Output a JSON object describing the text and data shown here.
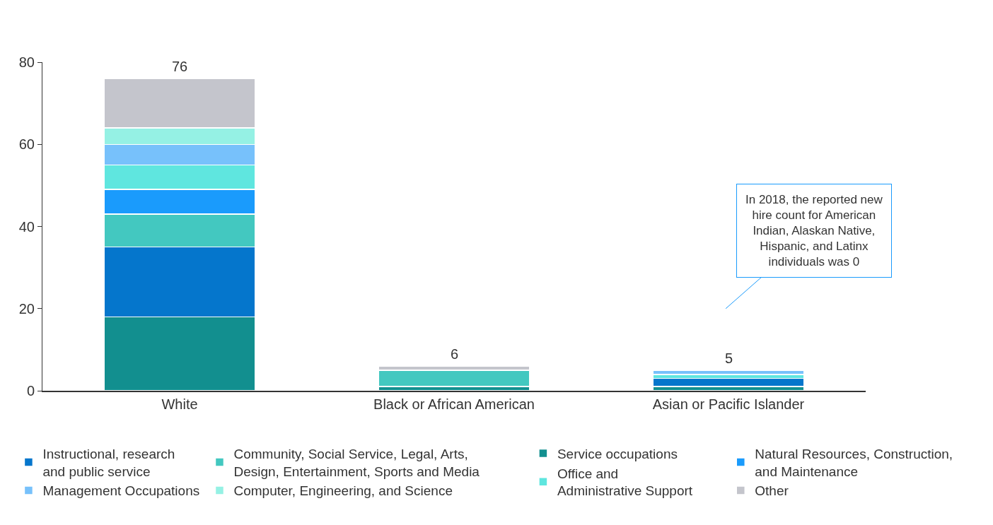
{
  "chart_data": {
    "type": "bar",
    "stacked": true,
    "categories": [
      "White",
      "Black or African American",
      "Asian or Pacific Islander"
    ],
    "series": [
      {
        "name": "Service occupations",
        "color": "#128f8f",
        "values": [
          18,
          1,
          1
        ]
      },
      {
        "name": "Instructional, research and public service",
        "color": "#0576cc",
        "values": [
          17,
          0,
          2
        ]
      },
      {
        "name": "Community, Social Service, Legal, Arts, Design, Entertainment, Sports and Media",
        "color": "#43c8c0",
        "values": [
          8,
          4,
          0
        ]
      },
      {
        "name": "Natural Resources, Construction, and Maintenance",
        "color": "#1a9bfc",
        "values": [
          6,
          0,
          0
        ]
      },
      {
        "name": "Office and Administrative Support",
        "color": "#5fe6df",
        "values": [
          6,
          0,
          1
        ]
      },
      {
        "name": "Management Occupations",
        "color": "#77c1fb",
        "values": [
          5,
          0,
          1
        ]
      },
      {
        "name": "Computer, Engineering, and Science",
        "color": "#95f1e4",
        "values": [
          4,
          0,
          0
        ]
      },
      {
        "name": "Other",
        "color": "#c4c5cc",
        "values": [
          12,
          1,
          0
        ]
      }
    ],
    "totals": [
      "76",
      "6",
      "5"
    ],
    "ylim": [
      0,
      80
    ],
    "yticks": [
      0,
      20,
      40,
      60,
      80
    ],
    "legend": "bottom",
    "annotations": [
      "In 2018, the reported new hire count for American Indian, Alaskan Native, Hispanic, and Latinx individuals was 0"
    ]
  }
}
